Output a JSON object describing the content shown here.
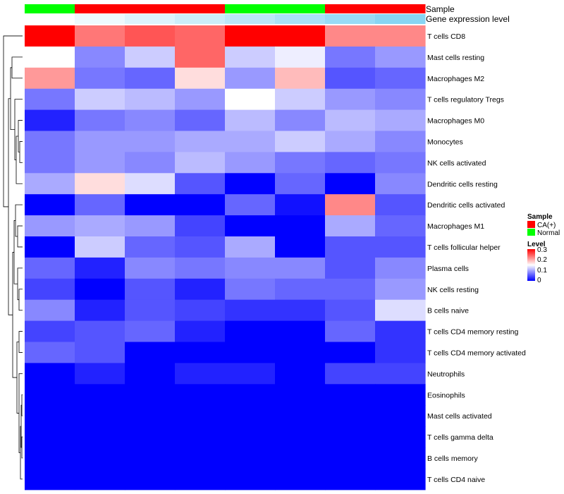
{
  "chart_data": {
    "type": "heatmap",
    "annotation_tracks": [
      {
        "name": "Sample",
        "values": [
          "Normal",
          "CA(+)",
          "CA(+)",
          "CA(+)",
          "Normal",
          "Normal",
          "CA(+)",
          "CA(+)"
        ]
      },
      {
        "name": "Gene expression level",
        "values": [
          0.0,
          0.1,
          0.2,
          0.3,
          0.4,
          0.5,
          0.6,
          0.7
        ]
      }
    ],
    "rows": [
      "T cells CD8",
      "Mast cells resting",
      "Macrophages M2",
      "T cells regulatory  Tregs",
      "Macrophages M0",
      "Monocytes",
      "NK cells activated",
      "Dendritic cells resting",
      "Dendritic cells activated",
      "Macrophages M1",
      "T cells follicular helper",
      "Plasma cells",
      "NK cells resting",
      "B cells naive",
      "T cells CD4 memory resting",
      "T cells CD4 memory activated",
      "Neutrophils",
      "Eosinophils",
      "Mast cells activated",
      "T cells gamma delta",
      "B cells memory",
      "T cells CD4 naive"
    ],
    "columns": 8,
    "values": [
      [
        0.3,
        0.23,
        0.25,
        0.24,
        0.3,
        0.3,
        0.22,
        0.22
      ],
      [
        0.15,
        0.08,
        0.12,
        0.24,
        0.12,
        0.14,
        0.07,
        0.09
      ],
      [
        0.21,
        0.07,
        0.06,
        0.17,
        0.09,
        0.19,
        0.05,
        0.06
      ],
      [
        0.07,
        0.12,
        0.11,
        0.09,
        0.15,
        0.12,
        0.09,
        0.08
      ],
      [
        0.02,
        0.07,
        0.08,
        0.06,
        0.11,
        0.08,
        0.11,
        0.1
      ],
      [
        0.07,
        0.09,
        0.09,
        0.1,
        0.1,
        0.12,
        0.1,
        0.08
      ],
      [
        0.07,
        0.09,
        0.08,
        0.11,
        0.09,
        0.07,
        0.06,
        0.07
      ],
      [
        0.1,
        0.17,
        0.13,
        0.05,
        0.0,
        0.06,
        0.0,
        0.08
      ],
      [
        0.0,
        0.06,
        0.0,
        0.0,
        0.06,
        0.01,
        0.22,
        0.05
      ],
      [
        0.09,
        0.1,
        0.09,
        0.04,
        0.0,
        0.0,
        0.1,
        0.06
      ],
      [
        0.0,
        0.12,
        0.06,
        0.05,
        0.1,
        0.0,
        0.05,
        0.05
      ],
      [
        0.06,
        0.02,
        0.08,
        0.07,
        0.08,
        0.08,
        0.05,
        0.08
      ],
      [
        0.04,
        0.0,
        0.05,
        0.02,
        0.07,
        0.06,
        0.06,
        0.09
      ],
      [
        0.08,
        0.02,
        0.05,
        0.04,
        0.03,
        0.03,
        0.05,
        0.13
      ],
      [
        0.04,
        0.05,
        0.06,
        0.02,
        0.0,
        0.0,
        0.06,
        0.03
      ],
      [
        0.06,
        0.05,
        0.0,
        0.0,
        0.0,
        0.0,
        0.0,
        0.03
      ],
      [
        0.0,
        0.02,
        0.0,
        0.02,
        0.02,
        0.0,
        0.04,
        0.04
      ],
      [
        0.0,
        0.0,
        0.0,
        0.0,
        0.0,
        0.0,
        0.0,
        0.0
      ],
      [
        0.0,
        0.0,
        0.0,
        0.0,
        0.0,
        0.0,
        0.0,
        0.0
      ],
      [
        0.0,
        0.0,
        0.0,
        0.0,
        0.0,
        0.0,
        0.0,
        0.0
      ],
      [
        0.0,
        0.0,
        0.0,
        0.0,
        0.0,
        0.0,
        0.0,
        0.0
      ],
      [
        0.0,
        0.0,
        0.0,
        0.0,
        0.0,
        0.0,
        0.0,
        0.0
      ]
    ],
    "color_scale": {
      "low": "#0000ff",
      "mid": "#ffffff",
      "high": "#ff0000",
      "midpoint": 0.15,
      "range": [
        0,
        0.3
      ]
    },
    "legends": {
      "sample": {
        "title": "Sample",
        "items": [
          {
            "label": "CA(+)",
            "color": "#ff0000"
          },
          {
            "label": "Normal",
            "color": "#00ff00"
          }
        ]
      },
      "level": {
        "title": "Level",
        "ticks": [
          "0.3",
          "0.2",
          "0.1",
          "0"
        ]
      }
    },
    "expression_colors": {
      "low": "#ffffff",
      "high": "#55c3ee"
    }
  }
}
